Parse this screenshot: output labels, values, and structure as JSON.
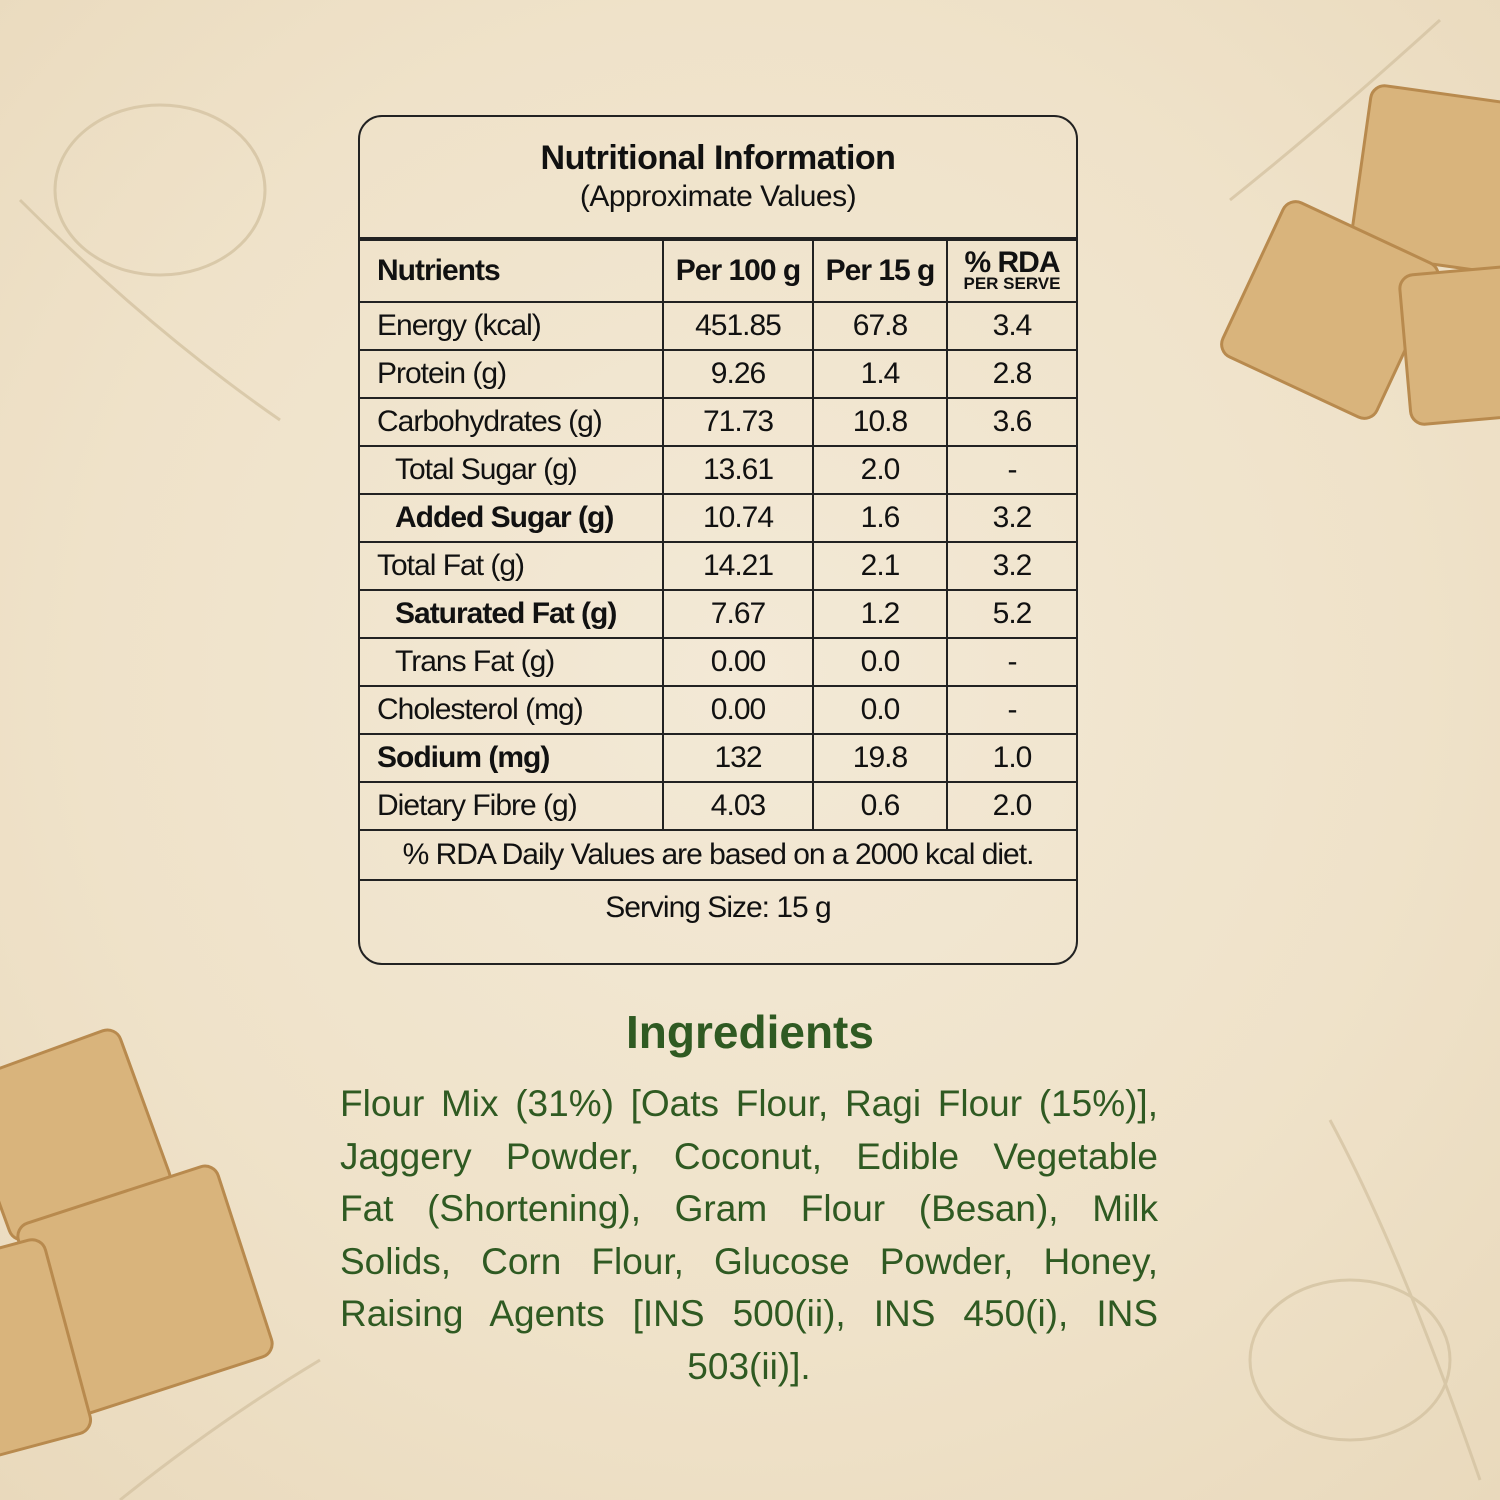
{
  "nutrition_panel": {
    "title": "Nutritional Information",
    "subtitle": "(Approximate Values)",
    "header": {
      "nutrients": "Nutrients",
      "per100": "Per 100 g",
      "per15": "Per 15 g",
      "rda": "% RDA",
      "rda_note": "PER SERVE"
    },
    "rows": [
      {
        "nutrient": "Energy (kcal)",
        "per100": "451.85",
        "per15": "67.8",
        "rda": "3.4",
        "bold": false,
        "indent": false
      },
      {
        "nutrient": "Protein (g)",
        "per100": "9.26",
        "per15": "1.4",
        "rda": "2.8",
        "bold": false,
        "indent": false
      },
      {
        "nutrient": "Carbohydrates (g)",
        "per100": "71.73",
        "per15": "10.8",
        "rda": "3.6",
        "bold": false,
        "indent": false
      },
      {
        "nutrient": "Total Sugar (g)",
        "per100": "13.61",
        "per15": "2.0",
        "rda": "-",
        "bold": false,
        "indent": true
      },
      {
        "nutrient": "Added Sugar (g)",
        "per100": "10.74",
        "per15": "1.6",
        "rda": "3.2",
        "bold": true,
        "indent": true
      },
      {
        "nutrient": "Total Fat (g)",
        "per100": "14.21",
        "per15": "2.1",
        "rda": "3.2",
        "bold": false,
        "indent": false
      },
      {
        "nutrient": "Saturated Fat (g)",
        "per100": "7.67",
        "per15": "1.2",
        "rda": "5.2",
        "bold": true,
        "indent": true
      },
      {
        "nutrient": "Trans Fat (g)",
        "per100": "0.00",
        "per15": "0.0",
        "rda": "-",
        "bold": false,
        "indent": true
      },
      {
        "nutrient": "Cholesterol (mg)",
        "per100": "0.00",
        "per15": "0.0",
        "rda": "-",
        "bold": false,
        "indent": false
      },
      {
        "nutrient": "Sodium (mg)",
        "per100": "132",
        "per15": "19.8",
        "rda": "1.0",
        "bold": true,
        "indent": false
      },
      {
        "nutrient": "Dietary Fibre (g)",
        "per100": "4.03",
        "per15": "0.6",
        "rda": "2.0",
        "bold": false,
        "indent": false
      }
    ],
    "footnote": "% RDA Daily Values are based on a 2000 kcal diet.",
    "serving": "Serving Size: 15 g"
  },
  "ingredients": {
    "heading": "Ingredients",
    "lines": [
      "Flour Mix (31%) [Oats Flour, Ragi Flour (15%)],",
      "Jaggery Powder, Coconut, Edible Vegetable",
      "Fat (Shortening), Gram Flour (Besan), Milk",
      "Solids, Corn Flour, Glucose Powder, Honey,",
      "Raising Agents [INS 500(ii), INS 450(i), INS",
      "503(ii)]."
    ]
  }
}
